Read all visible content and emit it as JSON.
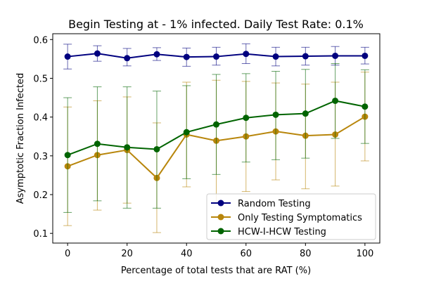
{
  "chart_data": {
    "type": "line",
    "title": "Begin Testing at - 1% infected. Daily Test Rate: 0.1%",
    "xlabel": "Percentage of total tests that are RAT (%)",
    "ylabel": "Asymptotic Fraction Infected",
    "x": [
      0,
      10,
      20,
      30,
      40,
      50,
      60,
      70,
      80,
      90,
      100
    ],
    "xlim": [
      -5,
      105
    ],
    "ylim": [
      0.075,
      0.615
    ],
    "xticks": [
      "0",
      "20",
      "40",
      "60",
      "80",
      "100"
    ],
    "yticks": [
      "0.1",
      "0.2",
      "0.3",
      "0.4",
      "0.5",
      "0.6"
    ],
    "legend_position": "lower-right",
    "grid": false,
    "series": [
      {
        "name": "Random Testing",
        "color": "#00007f",
        "values": [
          0.556,
          0.564,
          0.552,
          0.562,
          0.555,
          0.556,
          0.563,
          0.556,
          0.557,
          0.558,
          0.558
        ],
        "err_low": [
          0.524,
          0.544,
          0.532,
          0.546,
          0.531,
          0.534,
          0.538,
          0.532,
          0.534,
          0.534,
          0.537
        ],
        "err_high": [
          0.588,
          0.584,
          0.577,
          0.579,
          0.578,
          0.58,
          0.589,
          0.58,
          0.58,
          0.582,
          0.58
        ]
      },
      {
        "name": "Only Testing Symptomatics",
        "color": "#b8860b",
        "values": [
          0.273,
          0.302,
          0.315,
          0.243,
          0.355,
          0.339,
          0.35,
          0.363,
          0.352,
          0.355,
          0.401
        ],
        "err_low": [
          0.12,
          0.16,
          0.178,
          0.102,
          0.22,
          0.183,
          0.208,
          0.238,
          0.215,
          0.222,
          0.287
        ],
        "err_high": [
          0.426,
          0.442,
          0.452,
          0.385,
          0.49,
          0.495,
          0.492,
          0.488,
          0.485,
          0.49,
          0.516
        ]
      },
      {
        "name": "HCW-I-HCW Testing",
        "color": "#006400",
        "values": [
          0.302,
          0.331,
          0.322,
          0.317,
          0.361,
          0.381,
          0.398,
          0.406,
          0.409,
          0.442,
          0.427
        ],
        "err_low": [
          0.154,
          0.184,
          0.165,
          0.165,
          0.241,
          0.252,
          0.284,
          0.29,
          0.294,
          0.345,
          0.332
        ],
        "err_high": [
          0.45,
          0.478,
          0.478,
          0.467,
          0.481,
          0.51,
          0.512,
          0.518,
          0.523,
          0.538,
          0.522
        ]
      }
    ]
  }
}
